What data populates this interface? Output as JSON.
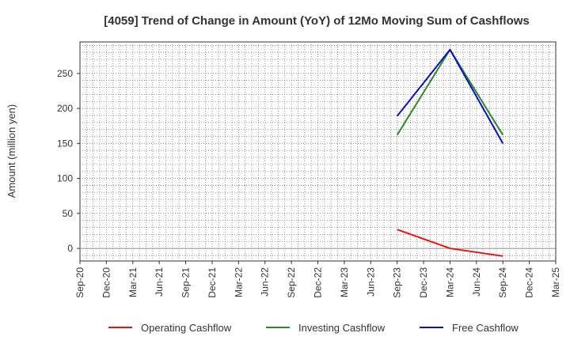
{
  "chart_data": {
    "type": "line",
    "title": "[4059]  Trend of Change in Amount (YoY) of 12Mo Moving Sum of Cashflows",
    "xlabel": "",
    "ylabel": "Amount (million yen)",
    "ylim": [
      -18,
      295
    ],
    "yticks": [
      0,
      50,
      100,
      150,
      200,
      250
    ],
    "categories": [
      "Sep-20",
      "Dec-20",
      "Mar-21",
      "Jun-21",
      "Sep-21",
      "Dec-21",
      "Mar-22",
      "Jun-22",
      "Sep-22",
      "Dec-22",
      "Mar-23",
      "Jun-23",
      "Sep-23",
      "Dec-23",
      "Mar-24",
      "Jun-24",
      "Sep-24",
      "Dec-24",
      "Mar-25"
    ],
    "grid": true,
    "legend_position": "bottom",
    "series": [
      {
        "name": "Operating Cashflow",
        "color": "#e8130e",
        "values": [
          null,
          null,
          null,
          null,
          null,
          null,
          null,
          null,
          null,
          null,
          null,
          null,
          27,
          null,
          0,
          null,
          -11,
          null,
          null
        ]
      },
      {
        "name": "Investing Cashflow",
        "color": "#2a8a28",
        "values": [
          null,
          null,
          null,
          null,
          null,
          null,
          null,
          null,
          null,
          null,
          null,
          null,
          162,
          null,
          284,
          null,
          162,
          null,
          null
        ]
      },
      {
        "name": "Free Cashflow",
        "color": "#0a10c8",
        "values": [
          null,
          null,
          null,
          null,
          null,
          null,
          null,
          null,
          null,
          null,
          null,
          null,
          189,
          null,
          284,
          null,
          150,
          null,
          null
        ]
      }
    ]
  }
}
